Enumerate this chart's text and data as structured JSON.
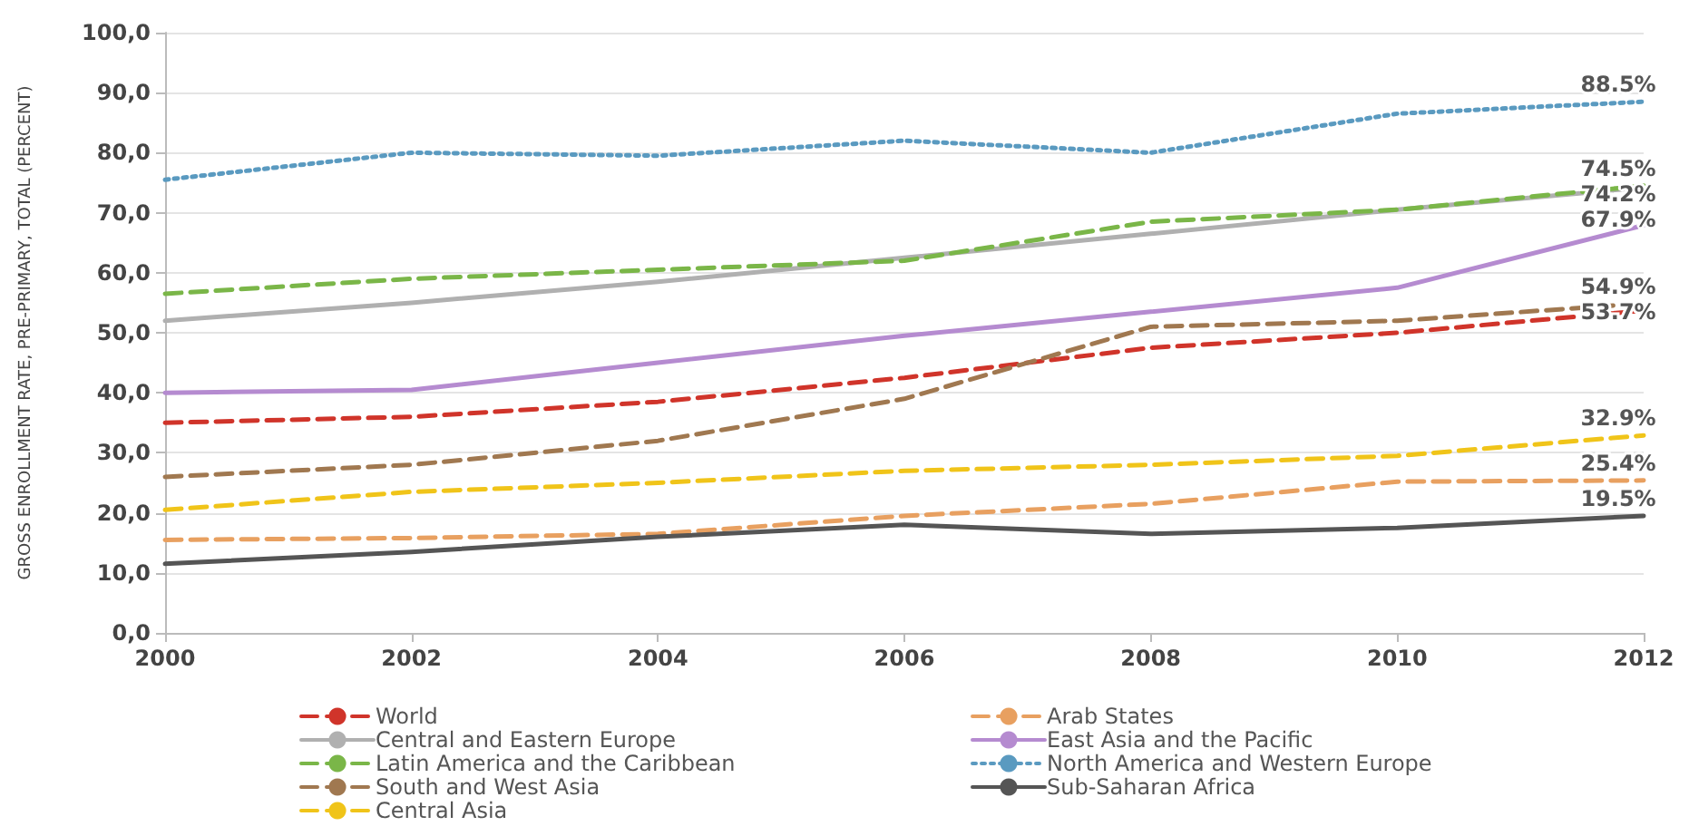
{
  "chart_data": {
    "type": "line",
    "ylabel": "GROSS ENROLLMENT RATE, PRE-PRIMARY, TOTAL (PERCENT)",
    "x": [
      2000,
      2002,
      2004,
      2006,
      2008,
      2010,
      2012
    ],
    "xlim": [
      2000,
      2012
    ],
    "xticks": [
      2000,
      2002,
      2004,
      2006,
      2008,
      2010,
      2012
    ],
    "ylim": [
      0,
      100
    ],
    "yticks": [
      {
        "value": 0,
        "label": "0,0"
      },
      {
        "value": 10,
        "label": "10,0"
      },
      {
        "value": 20,
        "label": "20,0"
      },
      {
        "value": 30,
        "label": "30,0"
      },
      {
        "value": 40,
        "label": "40,0"
      },
      {
        "value": 50,
        "label": "50,0"
      },
      {
        "value": 60,
        "label": "60,0"
      },
      {
        "value": 70,
        "label": "70,0"
      },
      {
        "value": 80,
        "label": "80,0"
      },
      {
        "value": 90,
        "label": "90,0"
      },
      {
        "value": 100,
        "label": "100,0"
      }
    ],
    "grid": "y",
    "legend": "bottom",
    "marker": "none",
    "series": [
      {
        "name": "World",
        "color": "#d0342a",
        "line_style": "dashed",
        "values": [
          35,
          36,
          38.5,
          42.5,
          47.5,
          50,
          53.7
        ],
        "value_labels": [
          null,
          null,
          null,
          null,
          null,
          null,
          "53.7%"
        ]
      },
      {
        "name": "Arab States",
        "color": "#e8a060",
        "line_style": "dashed",
        "values": [
          15.5,
          15.8,
          16.5,
          19.5,
          21.5,
          25.2,
          25.4
        ],
        "value_labels": [
          null,
          null,
          null,
          null,
          null,
          null,
          "25.4%"
        ]
      },
      {
        "name": "Central and Eastern Europe",
        "color": "#b0b0b0",
        "line_style": "solid",
        "values": [
          52,
          55,
          58.5,
          62.5,
          66.5,
          70.5,
          74.2
        ],
        "value_labels": [
          null,
          null,
          null,
          null,
          null,
          null,
          "74.2%"
        ]
      },
      {
        "name": "East Asia and the Pacific",
        "color": "#b58bd0",
        "line_style": "solid",
        "values": [
          40,
          40.5,
          45,
          49.5,
          53.5,
          57.5,
          67.9
        ],
        "value_labels": [
          null,
          null,
          null,
          null,
          null,
          null,
          "67.9%"
        ]
      },
      {
        "name": "Latin America and the Caribbean",
        "color": "#7ab648",
        "line_style": "dashed",
        "values": [
          56.5,
          59,
          60.5,
          62,
          68.5,
          70.5,
          74.5
        ],
        "value_labels": [
          null,
          null,
          null,
          null,
          null,
          null,
          "74.5%"
        ]
      },
      {
        "name": "North America and Western Europe",
        "color": "#5a9ac0",
        "line_style": "dotted",
        "values": [
          75.5,
          80,
          79.5,
          82,
          80,
          86.5,
          88.5
        ],
        "value_labels": [
          null,
          null,
          null,
          null,
          null,
          null,
          "88.5%"
        ]
      },
      {
        "name": "South and West Asia",
        "color": "#a07850",
        "line_style": "dashed",
        "values": [
          26,
          28,
          32,
          39,
          51,
          52,
          54.9
        ],
        "value_labels": [
          null,
          null,
          null,
          null,
          null,
          null,
          "54.9%"
        ]
      },
      {
        "name": "Sub-Saharan Africa",
        "color": "#555555",
        "line_style": "solid",
        "values": [
          11.5,
          13.5,
          16,
          18,
          16.5,
          17.5,
          19.5
        ],
        "value_labels": [
          null,
          null,
          null,
          null,
          null,
          null,
          "19.5%"
        ]
      },
      {
        "name": "Central Asia",
        "color": "#f0c419",
        "line_style": "dashed",
        "values": [
          20.5,
          23.5,
          25,
          27,
          28,
          29.5,
          32.9
        ],
        "value_labels": [
          null,
          null,
          null,
          null,
          null,
          null,
          "32.9%"
        ]
      }
    ]
  }
}
